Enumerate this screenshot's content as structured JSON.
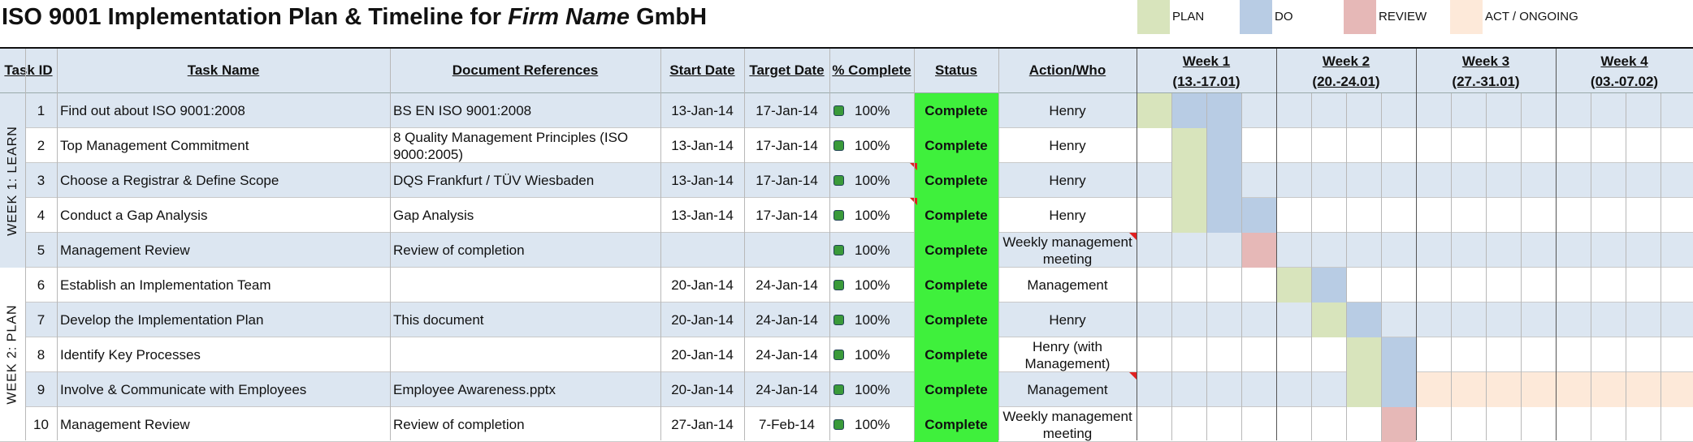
{
  "title": {
    "prefix": "ISO 9001 Implementation Plan & Timeline for ",
    "firm": "Firm Name",
    "suffix": "  GmbH"
  },
  "legend": [
    {
      "label": "PLAN",
      "color": "#d8e4bc"
    },
    {
      "label": "DO",
      "color": "#b8cce4"
    },
    {
      "label": "REVIEW",
      "color": "#e6b8b7"
    },
    {
      "label": "ACT / ONGOING",
      "color": "#fde9d9"
    }
  ],
  "headers": {
    "task_id": "Task ID",
    "task_name": "Task Name",
    "doc_refs": "Document References",
    "start": "Start Date",
    "target": "Target Date",
    "pct": "% Complete",
    "status": "Status",
    "action": "Action/Who"
  },
  "weeks": [
    {
      "label": "Week 1",
      "range": "(13.-17.01)"
    },
    {
      "label": "Week 2",
      "range": "(20.-24.01)"
    },
    {
      "label": "Week 3",
      "range": "(27.-31.01)"
    },
    {
      "label": "Week 4",
      "range": "(03.-07.02)"
    }
  ],
  "groups": [
    "WEEK 1: LEARN",
    "WEEK 2: PLAN"
  ],
  "rows": [
    {
      "id": "1",
      "name": "Find out about ISO 9001:2008",
      "doc": "BS EN ISO 9001:2008",
      "start": "13-Jan-14",
      "target": "17-Jan-14",
      "pct": "100%",
      "status": "Complete",
      "who": "Henry"
    },
    {
      "id": "2",
      "name": "Top Management Commitment",
      "doc": "8 Quality Management Principles (ISO 9000:2005)",
      "start": "13-Jan-14",
      "target": "17-Jan-14",
      "pct": "100%",
      "status": "Complete",
      "who": "Henry"
    },
    {
      "id": "3",
      "name": "Choose a Registrar & Define Scope",
      "doc": "DQS Frankfurt / TÜV Wiesbaden",
      "start": "13-Jan-14",
      "target": "17-Jan-14",
      "pct": "100%",
      "status": "Complete",
      "who": "Henry"
    },
    {
      "id": "4",
      "name": "Conduct a Gap Analysis",
      "doc": "Gap Analysis",
      "start": "13-Jan-14",
      "target": "17-Jan-14",
      "pct": "100%",
      "status": "Complete",
      "who": "Henry"
    },
    {
      "id": "5",
      "name": "Management Review",
      "doc": "Review of completion",
      "start": "",
      "target": "",
      "pct": "100%",
      "status": "Complete",
      "who": "Weekly management meeting"
    },
    {
      "id": "6",
      "name": "Establish an Implementation Team",
      "doc": "",
      "start": "20-Jan-14",
      "target": "24-Jan-14",
      "pct": "100%",
      "status": "Complete",
      "who": "Management"
    },
    {
      "id": "7",
      "name": "Develop the Implementation Plan",
      "doc": "This document",
      "start": "20-Jan-14",
      "target": "24-Jan-14",
      "pct": "100%",
      "status": "Complete",
      "who": "Henry"
    },
    {
      "id": "8",
      "name": "Identify Key Processes",
      "doc": "",
      "start": "20-Jan-14",
      "target": "24-Jan-14",
      "pct": "100%",
      "status": "Complete",
      "who": "Henry (with Management)"
    },
    {
      "id": "9",
      "name": "Involve & Communicate with Employees",
      "doc": "Employee Awareness.pptx",
      "start": "20-Jan-14",
      "target": "24-Jan-14",
      "pct": "100%",
      "status": "Complete",
      "who": "Management"
    },
    {
      "id": "10",
      "name": "Management Review",
      "doc": "Review of completion",
      "start": "27-Jan-14",
      "target": "7-Feb-14",
      "pct": "100%",
      "status": "Complete",
      "who": "Weekly management meeting"
    }
  ],
  "gantt": [
    {
      "row": 1,
      "cells": [
        [
          0,
          "plan"
        ],
        [
          1,
          "do"
        ],
        [
          2,
          "do"
        ]
      ]
    },
    {
      "row": 2,
      "cells": [
        [
          1,
          "plan"
        ],
        [
          2,
          "do"
        ]
      ]
    },
    {
      "row": 3,
      "cells": [
        [
          1,
          "plan"
        ],
        [
          2,
          "do"
        ]
      ]
    },
    {
      "row": 4,
      "cells": [
        [
          1,
          "plan"
        ],
        [
          2,
          "do"
        ],
        [
          3,
          "do"
        ]
      ]
    },
    {
      "row": 5,
      "cells": [
        [
          3,
          "review"
        ]
      ]
    },
    {
      "row": 6,
      "cells": [
        [
          4,
          "plan"
        ],
        [
          5,
          "do"
        ]
      ]
    },
    {
      "row": 7,
      "cells": [
        [
          5,
          "plan"
        ],
        [
          6,
          "do"
        ]
      ]
    },
    {
      "row": 8,
      "cells": [
        [
          6,
          "plan"
        ],
        [
          7,
          "do"
        ]
      ]
    },
    {
      "row": 9,
      "cells": [
        [
          6,
          "plan"
        ],
        [
          7,
          "do"
        ],
        [
          8,
          "act"
        ],
        [
          9,
          "act"
        ],
        [
          10,
          "act"
        ],
        [
          11,
          "act"
        ],
        [
          12,
          "act"
        ],
        [
          13,
          "act"
        ],
        [
          14,
          "act"
        ],
        [
          15,
          "act"
        ]
      ]
    },
    {
      "row": 10,
      "cells": [
        [
          7,
          "review"
        ]
      ]
    }
  ],
  "colors": {
    "plan": "#d8e4bc",
    "do": "#b8cce4",
    "review": "#e6b8b7",
    "act": "#fde9d9",
    "status": "#3ff03c",
    "header": "#dce6f1"
  }
}
